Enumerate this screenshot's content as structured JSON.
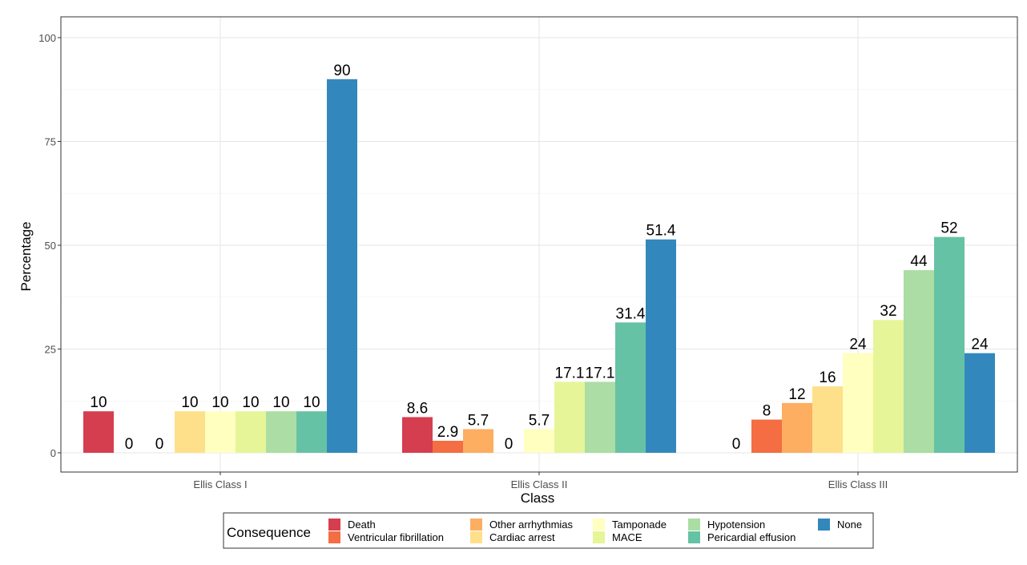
{
  "chart_data": {
    "type": "bar",
    "title": "",
    "xlabel": "Class",
    "ylabel": "Percentage",
    "ylim": [
      0,
      100
    ],
    "yticks": [
      0,
      25,
      50,
      75,
      100
    ],
    "grid": true,
    "legend_position": "bottom",
    "legend_title": "Consequence",
    "categories": [
      "Ellis Class I",
      "Ellis Class II",
      "Ellis Class III"
    ],
    "series": [
      {
        "name": "Death",
        "color": "#d53e4f",
        "values": [
          10,
          8.6,
          0
        ],
        "labels": [
          "10",
          "8.6",
          "0"
        ]
      },
      {
        "name": "Ventricular fibrillation",
        "color": "#f46d43",
        "values": [
          0,
          2.9,
          8
        ],
        "labels": [
          "0",
          "2.9",
          "8"
        ]
      },
      {
        "name": "Other arrhythmias",
        "color": "#fdae61",
        "values": [
          0,
          5.7,
          12
        ],
        "labels": [
          "0",
          "5.7",
          "12"
        ]
      },
      {
        "name": "Cardiac arrest",
        "color": "#fee08b",
        "values": [
          10,
          0,
          16
        ],
        "labels": [
          "10",
          "0",
          "16"
        ]
      },
      {
        "name": "Tamponade",
        "color": "#ffffbf",
        "values": [
          10,
          5.7,
          24
        ],
        "labels": [
          "10",
          "5.7",
          "24"
        ]
      },
      {
        "name": "MACE",
        "color": "#e6f598",
        "values": [
          10,
          17.1,
          32
        ],
        "labels": [
          "10",
          "17.1",
          "32"
        ]
      },
      {
        "name": "Hypotension",
        "color": "#abdda4",
        "values": [
          10,
          17.1,
          44
        ],
        "labels": [
          "10",
          "17.1",
          "44"
        ]
      },
      {
        "name": "Pericardial effusion",
        "color": "#66c2a5",
        "values": [
          10,
          31.4,
          52
        ],
        "labels": [
          "10",
          "31.4",
          "52"
        ]
      },
      {
        "name": "None",
        "color": "#3288bd",
        "values": [
          90,
          51.4,
          24
        ],
        "labels": [
          "90",
          "51.4",
          "24"
        ]
      }
    ]
  }
}
